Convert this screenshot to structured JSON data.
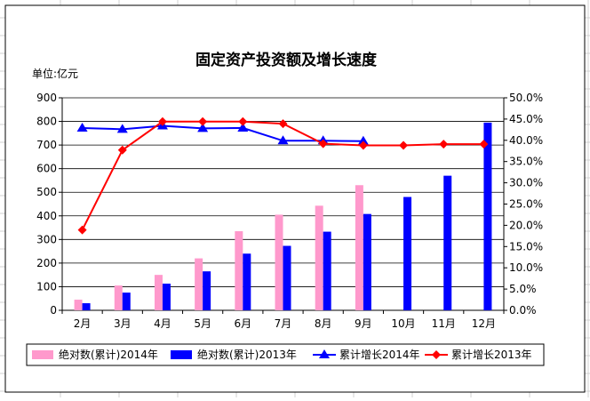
{
  "chart_data": {
    "type": "bar+line",
    "title": "固定资产投资额及增长速度",
    "ylabel_left": "单位:亿元",
    "categories": [
      "2月",
      "3月",
      "4月",
      "5月",
      "6月",
      "7月",
      "8月",
      "9月",
      "10月",
      "11月",
      "12月"
    ],
    "left_axis": {
      "min": 0,
      "max": 900,
      "ticks": [
        "0",
        "100",
        "200",
        "300",
        "400",
        "500",
        "600",
        "700",
        "800",
        "900"
      ]
    },
    "right_axis": {
      "min": 0,
      "max": 50,
      "ticks": [
        "0.0%",
        "5.0%",
        "10.0%",
        "15.0%",
        "20.0%",
        "25.0%",
        "30.0%",
        "35.0%",
        "40.0%",
        "45.0%",
        "50.0%"
      ]
    },
    "grid": true,
    "legend_position": "bottom",
    "series": [
      {
        "name": "绝对数(累计)2014年",
        "type": "bar",
        "axis": "left",
        "color": "#ff99cc",
        "values": [
          45,
          105,
          150,
          220,
          335,
          405,
          443,
          530,
          null,
          null,
          null
        ]
      },
      {
        "name": "绝对数(累计)2013年",
        "type": "bar",
        "axis": "left",
        "color": "#0000ff",
        "values": [
          30,
          75,
          113,
          165,
          240,
          273,
          333,
          408,
          480,
          570,
          795
        ]
      },
      {
        "name": "累计增长2014年",
        "type": "line",
        "axis": "right",
        "color": "#0000ff",
        "marker": "triangle",
        "values": [
          42.9,
          42.6,
          43.4,
          42.8,
          42.9,
          39.9,
          39.9,
          39.8,
          null,
          null,
          null
        ]
      },
      {
        "name": "累计增长2013年",
        "type": "line",
        "axis": "right",
        "color": "#ff0000",
        "marker": "diamond",
        "values": [
          18.9,
          37.7,
          44.4,
          44.4,
          44.4,
          43.9,
          39.2,
          38.8,
          38.8,
          39.1,
          39.1
        ]
      }
    ]
  }
}
